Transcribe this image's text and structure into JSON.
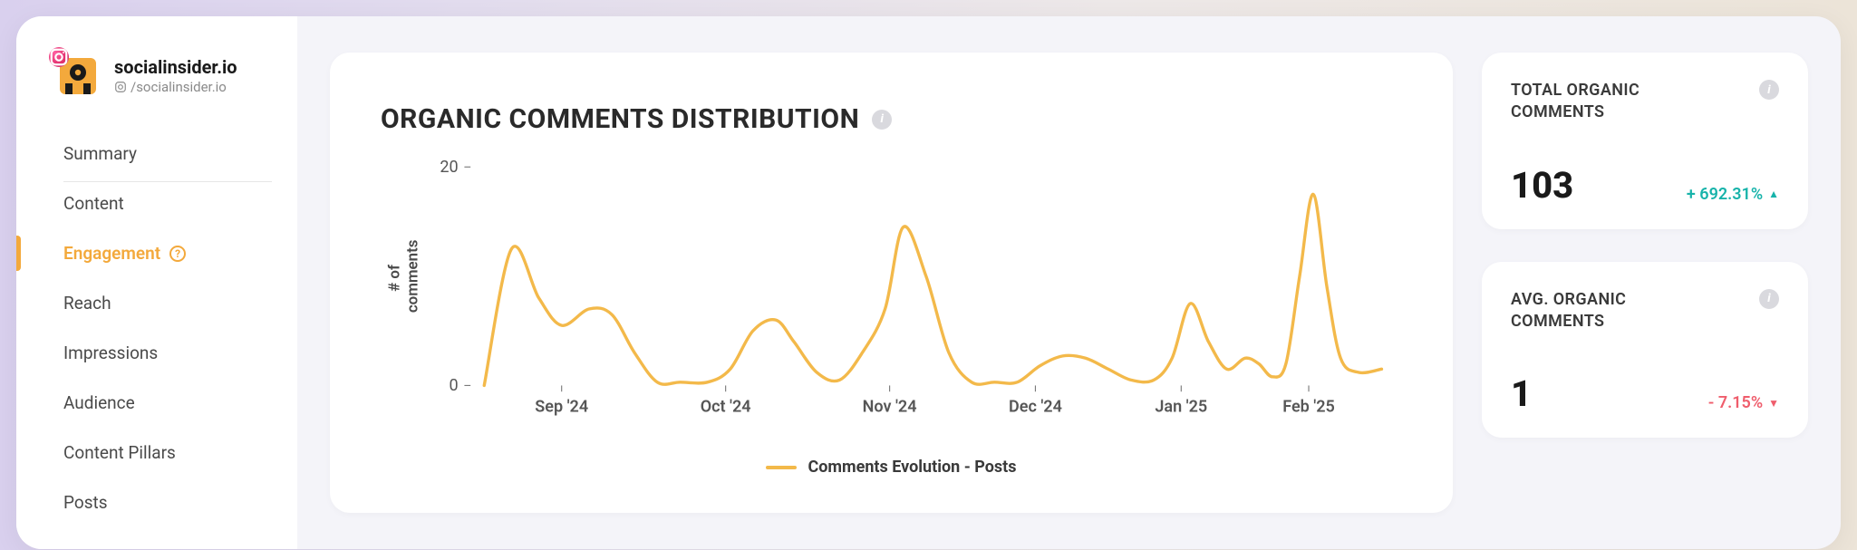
{
  "brand": {
    "name": "socialinsider.io",
    "handle": "/socialinsider.io",
    "logo_colors": {
      "bg": "#f3a93c",
      "dark": "#1a1a1a"
    },
    "platform_icon": "instagram"
  },
  "sidebar": {
    "items": [
      {
        "label": "Summary",
        "active": false,
        "sep": true
      },
      {
        "label": "Content",
        "active": false,
        "sep": false
      },
      {
        "label": "Engagement",
        "active": true,
        "sep": false,
        "help": true
      },
      {
        "label": "Reach",
        "active": false,
        "sep": false
      },
      {
        "label": "Impressions",
        "active": false,
        "sep": false
      },
      {
        "label": "Audience",
        "active": false,
        "sep": false
      },
      {
        "label": "Content Pillars",
        "active": false,
        "sep": false
      },
      {
        "label": "Posts",
        "active": false,
        "sep": false
      }
    ]
  },
  "chart": {
    "title": "ORGANIC COMMENTS DISTRIBUTION",
    "type": "line",
    "y_axis_label": "# of comments",
    "ylim": [
      0,
      20
    ],
    "yticks": [
      0,
      20
    ],
    "x_ticks": [
      "Sep '24",
      "Oct '24",
      "Nov '24",
      "Dec '24",
      "Jan '25",
      "Feb '25"
    ],
    "x_tick_positions": [
      0.1,
      0.28,
      0.46,
      0.62,
      0.78,
      0.92
    ],
    "legend_label": "Comments Evolution - Posts",
    "series_color": "#f3b94a",
    "line_width": 3,
    "background_color": "#ffffff",
    "axis_color": "#7a7a7a",
    "points": [
      {
        "x": 0.015,
        "y": 0
      },
      {
        "x": 0.045,
        "y": 12.5
      },
      {
        "x": 0.075,
        "y": 8
      },
      {
        "x": 0.1,
        "y": 5.5
      },
      {
        "x": 0.13,
        "y": 7
      },
      {
        "x": 0.155,
        "y": 6.5
      },
      {
        "x": 0.18,
        "y": 3
      },
      {
        "x": 0.205,
        "y": 0.3
      },
      {
        "x": 0.23,
        "y": 0.3
      },
      {
        "x": 0.26,
        "y": 0.3
      },
      {
        "x": 0.285,
        "y": 1.5
      },
      {
        "x": 0.31,
        "y": 5
      },
      {
        "x": 0.335,
        "y": 6
      },
      {
        "x": 0.355,
        "y": 4
      },
      {
        "x": 0.38,
        "y": 1.2
      },
      {
        "x": 0.405,
        "y": 0.5
      },
      {
        "x": 0.43,
        "y": 3
      },
      {
        "x": 0.455,
        "y": 7
      },
      {
        "x": 0.475,
        "y": 14.5
      },
      {
        "x": 0.5,
        "y": 10
      },
      {
        "x": 0.525,
        "y": 3
      },
      {
        "x": 0.55,
        "y": 0.3
      },
      {
        "x": 0.575,
        "y": 0.3
      },
      {
        "x": 0.6,
        "y": 0.3
      },
      {
        "x": 0.625,
        "y": 1.8
      },
      {
        "x": 0.65,
        "y": 2.7
      },
      {
        "x": 0.675,
        "y": 2.5
      },
      {
        "x": 0.7,
        "y": 1.5
      },
      {
        "x": 0.725,
        "y": 0.5
      },
      {
        "x": 0.75,
        "y": 0.5
      },
      {
        "x": 0.77,
        "y": 2.5
      },
      {
        "x": 0.79,
        "y": 7.5
      },
      {
        "x": 0.81,
        "y": 4
      },
      {
        "x": 0.83,
        "y": 1.5
      },
      {
        "x": 0.85,
        "y": 2.5
      },
      {
        "x": 0.865,
        "y": 2
      },
      {
        "x": 0.88,
        "y": 0.8
      },
      {
        "x": 0.895,
        "y": 2
      },
      {
        "x": 0.91,
        "y": 10
      },
      {
        "x": 0.925,
        "y": 17.5
      },
      {
        "x": 0.94,
        "y": 9
      },
      {
        "x": 0.955,
        "y": 2.5
      },
      {
        "x": 0.975,
        "y": 1.2
      },
      {
        "x": 1.0,
        "y": 1.5
      }
    ]
  },
  "stats": [
    {
      "label": "TOTAL ORGANIC COMMENTS",
      "value": "103",
      "delta_text": "+ 692.31%",
      "delta_dir": "up",
      "delta_color": "#17b3aa"
    },
    {
      "label": "AVG. ORGANIC COMMENTS",
      "value": "1",
      "delta_text": "- 7.15%",
      "delta_dir": "down",
      "delta_color": "#ef5d6c"
    }
  ],
  "colors": {
    "page_bg": "#f4f4f9",
    "card_bg": "#ffffff",
    "text": "#2a2a2a",
    "muted": "#8a8a8a",
    "accent": "#f3a93c"
  }
}
